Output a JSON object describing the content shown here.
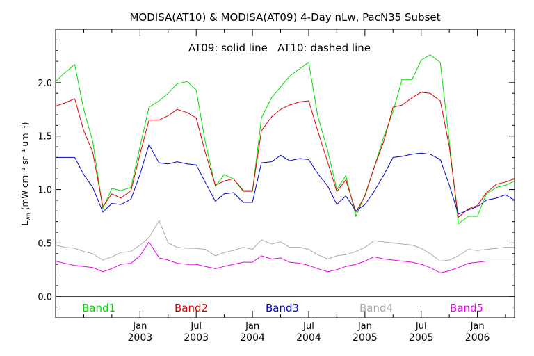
{
  "chart_data": {
    "type": "line",
    "title": "MODISA(AT10) & MODISA(AT09) 4-Day nLw, PacN35 Subset",
    "annotation": "AT09: solid line   AT10: dashed line",
    "ylabel": "Lₙᵤ (mW cm⁻² sr⁻¹ um⁻¹)",
    "ylabel_main": "L",
    "ylabel_sub": "wn",
    "ylabel_rest": "(mW cm⁻² sr⁻¹ um⁻¹)",
    "xlabel": "",
    "ylim": [
      -0.2,
      2.5
    ],
    "xlim": [
      2002.25,
      2006.33
    ],
    "y_ticks": [
      0.0,
      0.5,
      1.0,
      1.5,
      2.0
    ],
    "y_tick_labels": [
      "0.0",
      "0.5",
      "1.0",
      "1.5",
      "2.0"
    ],
    "x_ticks": [
      {
        "x": 2003.0,
        "month": "Jan",
        "year": "2003"
      },
      {
        "x": 2003.5,
        "month": "Jul",
        "year": "2003"
      },
      {
        "x": 2004.0,
        "month": "Jan",
        "year": "2004"
      },
      {
        "x": 2004.5,
        "month": "Jul",
        "year": "2004"
      },
      {
        "x": 2005.0,
        "month": "Jan",
        "year": "2005"
      },
      {
        "x": 2005.5,
        "month": "Jul",
        "year": "2005"
      },
      {
        "x": 2006.0,
        "month": "Jan",
        "year": "2006"
      }
    ],
    "zero_line": true,
    "legend": "bottom",
    "x": [
      2002.25,
      2002.33,
      2002.42,
      2002.5,
      2002.58,
      2002.67,
      2002.75,
      2002.83,
      2002.92,
      2003.0,
      2003.08,
      2003.17,
      2003.25,
      2003.33,
      2003.42,
      2003.5,
      2003.58,
      2003.67,
      2003.75,
      2003.83,
      2003.92,
      2004.0,
      2004.08,
      2004.17,
      2004.25,
      2004.33,
      2004.42,
      2004.5,
      2004.58,
      2004.67,
      2004.75,
      2004.83,
      2004.92,
      2005.0,
      2005.08,
      2005.17,
      2005.25,
      2005.33,
      2005.42,
      2005.5,
      2005.58,
      2005.67,
      2005.75,
      2005.83,
      2005.92,
      2006.0,
      2006.08,
      2006.17,
      2006.25,
      2006.33
    ],
    "series": [
      {
        "name": "Band1",
        "color": "#00dd00",
        "values": [
          2.01,
          2.09,
          2.17,
          1.75,
          1.45,
          0.82,
          1.01,
          0.99,
          1.02,
          1.4,
          1.77,
          1.83,
          1.9,
          1.99,
          2.01,
          1.93,
          1.45,
          1.03,
          1.14,
          1.1,
          0.98,
          0.98,
          1.67,
          1.86,
          1.96,
          2.06,
          2.13,
          2.19,
          1.69,
          1.36,
          1.0,
          1.13,
          0.75,
          0.95,
          1.2,
          1.5,
          1.73,
          2.03,
          2.03,
          2.21,
          2.26,
          2.19,
          1.45,
          0.68,
          0.75,
          0.75,
          0.96,
          1.02,
          1.04,
          1.08
        ]
      },
      {
        "name": "Band2",
        "color": "#dd0000",
        "values": [
          1.78,
          1.81,
          1.85,
          1.55,
          1.35,
          0.84,
          0.96,
          0.92,
          0.99,
          1.33,
          1.65,
          1.65,
          1.69,
          1.75,
          1.72,
          1.67,
          1.35,
          1.04,
          1.08,
          1.1,
          0.99,
          0.99,
          1.55,
          1.68,
          1.75,
          1.79,
          1.82,
          1.83,
          1.55,
          1.25,
          0.98,
          1.09,
          0.79,
          0.94,
          1.2,
          1.46,
          1.77,
          1.79,
          1.86,
          1.91,
          1.9,
          1.83,
          1.4,
          0.74,
          0.82,
          0.85,
          0.97,
          1.05,
          1.07,
          1.1
        ]
      },
      {
        "name": "Band3",
        "color": "#0000cc",
        "values": [
          1.3,
          1.3,
          1.3,
          1.14,
          1.02,
          0.79,
          0.87,
          0.86,
          0.91,
          1.14,
          1.42,
          1.25,
          1.24,
          1.26,
          1.24,
          1.23,
          1.07,
          0.89,
          0.96,
          0.97,
          0.88,
          0.88,
          1.25,
          1.26,
          1.32,
          1.27,
          1.29,
          1.28,
          1.15,
          1.03,
          0.86,
          0.94,
          0.8,
          0.86,
          0.98,
          1.14,
          1.3,
          1.31,
          1.33,
          1.34,
          1.33,
          1.28,
          1.04,
          0.77,
          0.81,
          0.84,
          0.9,
          0.92,
          0.95,
          0.9
        ]
      },
      {
        "name": "Band4",
        "color": "#aaaaaa",
        "values": [
          0.48,
          0.46,
          0.45,
          0.42,
          0.4,
          0.34,
          0.37,
          0.41,
          0.42,
          0.48,
          0.55,
          0.71,
          0.5,
          0.46,
          0.45,
          0.45,
          0.44,
          0.38,
          0.41,
          0.43,
          0.46,
          0.44,
          0.53,
          0.49,
          0.51,
          0.46,
          0.46,
          0.44,
          0.39,
          0.35,
          0.38,
          0.39,
          0.42,
          0.46,
          0.52,
          0.51,
          0.5,
          0.49,
          0.48,
          0.45,
          0.4,
          0.33,
          0.34,
          0.38,
          0.44,
          0.43,
          0.44,
          0.45,
          0.46,
          0.46
        ]
      },
      {
        "name": "Band5",
        "color": "#ee00ee",
        "values": [
          0.33,
          0.31,
          0.29,
          0.28,
          0.27,
          0.23,
          0.26,
          0.3,
          0.31,
          0.38,
          0.51,
          0.36,
          0.34,
          0.31,
          0.3,
          0.3,
          0.28,
          0.26,
          0.28,
          0.3,
          0.32,
          0.32,
          0.38,
          0.35,
          0.36,
          0.32,
          0.31,
          0.29,
          0.26,
          0.23,
          0.25,
          0.28,
          0.3,
          0.33,
          0.37,
          0.35,
          0.34,
          0.33,
          0.32,
          0.3,
          0.27,
          0.22,
          0.24,
          0.27,
          0.31,
          0.32,
          0.33,
          0.33,
          0.33,
          0.33
        ]
      }
    ]
  }
}
